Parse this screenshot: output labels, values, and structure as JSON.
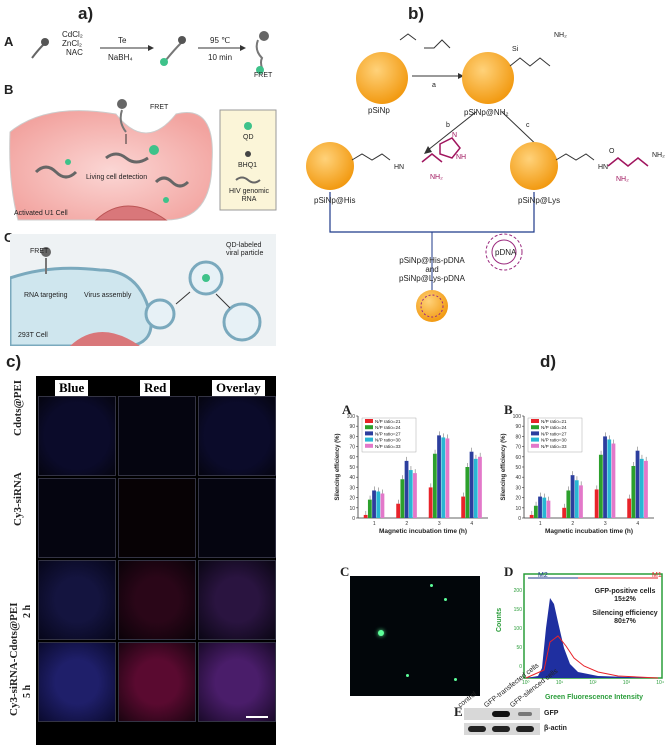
{
  "panel_labels": {
    "a": "a)",
    "b": "b)",
    "c": "c)",
    "d": "d)"
  },
  "panel_a": {
    "A": {
      "letter": "A",
      "reagents": [
        "CdCl₂",
        "ZnCl₂",
        "NAC"
      ],
      "arrow1_top": "Te",
      "arrow1_bottom": "NaBH₄",
      "arrow2_top": "95 ℃",
      "arrow2_bottom": "10 min",
      "product": "FRET"
    },
    "B": {
      "letter": "B",
      "fret": "FRET",
      "detection": "Living cell detection",
      "cell": "Activated U1 Cell",
      "legend": [
        "QD",
        "BHQ1",
        "HIV genomic RNA"
      ]
    },
    "C": {
      "letter": "C",
      "fret": "FRET",
      "step1": "RNA targeting",
      "step2": "Virus assembly",
      "qd_label": "QD-labeled viral particle",
      "cell": "293T Cell"
    }
  },
  "panel_b": {
    "pSiNp": "pSiNp",
    "pSiNp_NH2": "pSiNp@NH₂",
    "step_a": "a",
    "step_b": "b",
    "step_c": "c",
    "his": "pSiNp@His",
    "lys": "pSiNp@Lys",
    "pdna": "pDNA",
    "product1": "pSiNp@His-pDNA",
    "and": "and",
    "product2": "pSiNp@Lys-pDNA",
    "si": "Si",
    "nh2": "NH₂",
    "hn": "HN",
    "nh": "NH",
    "n": "N",
    "o": "O"
  },
  "panel_c": {
    "columns": [
      "Blue",
      "Red",
      "Overlay"
    ],
    "rows": [
      "Cdots@PEI",
      "Cy3-siRNA",
      "Cy3-siRNA-Cdots@PEI"
    ],
    "time_labels": [
      "2 h",
      "5 h"
    ]
  },
  "panel_d": {
    "A_letter": "A",
    "B_letter": "B",
    "C_letter": "C",
    "D_letter": "D",
    "E_letter": "E",
    "flow": {
      "m2": "M2",
      "m1": "M1",
      "text1": "GFP-positive cells",
      "text1b": "15±2%",
      "text2": "Silencing efficiency",
      "text2b": "80±7%",
      "xlabel": "Green Fluorescence Intensity",
      "ylabel": "Counts",
      "yticks": [
        "0",
        "50",
        "100",
        "150",
        "200"
      ],
      "xticks": [
        "10⁰",
        "10¹",
        "10²",
        "10³",
        "10⁴"
      ]
    },
    "blot": {
      "lanes": [
        "control",
        "GFP-transfected cells",
        "GFP-silenced cells"
      ],
      "bands": [
        "GFP",
        "β-actin"
      ]
    }
  },
  "chart_data": [
    {
      "type": "bar",
      "ylabel": "Silencing efficiency (%)",
      "xlabel": "Magnetic incubation time (h)",
      "categories": [
        "1",
        "2",
        "3",
        "4"
      ],
      "ylim": [
        0,
        100
      ],
      "yticks": [
        "0",
        "10",
        "20",
        "30",
        "40",
        "50",
        "60",
        "70",
        "80",
        "90",
        "100"
      ],
      "legend_position": "top-left",
      "series": [
        {
          "name": "N/P ratio=21",
          "color": "#e8232a",
          "values": [
            3,
            14,
            30,
            21
          ]
        },
        {
          "name": "N/P ratio=24",
          "color": "#2ca02c",
          "values": [
            18,
            38,
            63,
            50
          ]
        },
        {
          "name": "N/P ratio=27",
          "color": "#2c3e9e",
          "values": [
            27,
            56,
            81,
            65
          ]
        },
        {
          "name": "N/P ratio=30",
          "color": "#29b6d4",
          "values": [
            26,
            47,
            79,
            58
          ]
        },
        {
          "name": "N/P ratio=33",
          "color": "#e378c9",
          "values": [
            24,
            44,
            78,
            60
          ]
        }
      ]
    },
    {
      "type": "bar",
      "ylabel": "Silencing efficiency (%)",
      "xlabel": "Magnetic incubation time (h)",
      "categories": [
        "1",
        "2",
        "3",
        "4"
      ],
      "ylim": [
        0,
        100
      ],
      "yticks": [
        "0",
        "10",
        "20",
        "30",
        "40",
        "50",
        "60",
        "70",
        "80",
        "90",
        "100"
      ],
      "legend_position": "top-left",
      "series": [
        {
          "name": "N/P ratio=21",
          "color": "#e8232a",
          "values": [
            3,
            10,
            28,
            19
          ]
        },
        {
          "name": "N/P ratio=24",
          "color": "#2ca02c",
          "values": [
            12,
            27,
            62,
            51
          ]
        },
        {
          "name": "N/P ratio=27",
          "color": "#2c3e9e",
          "values": [
            21,
            42,
            80,
            66
          ]
        },
        {
          "name": "N/P ratio=30",
          "color": "#29b6d4",
          "values": [
            20,
            37,
            77,
            58
          ]
        },
        {
          "name": "N/P ratio=33",
          "color": "#e378c9",
          "values": [
            17,
            32,
            73,
            56
          ]
        }
      ]
    }
  ]
}
